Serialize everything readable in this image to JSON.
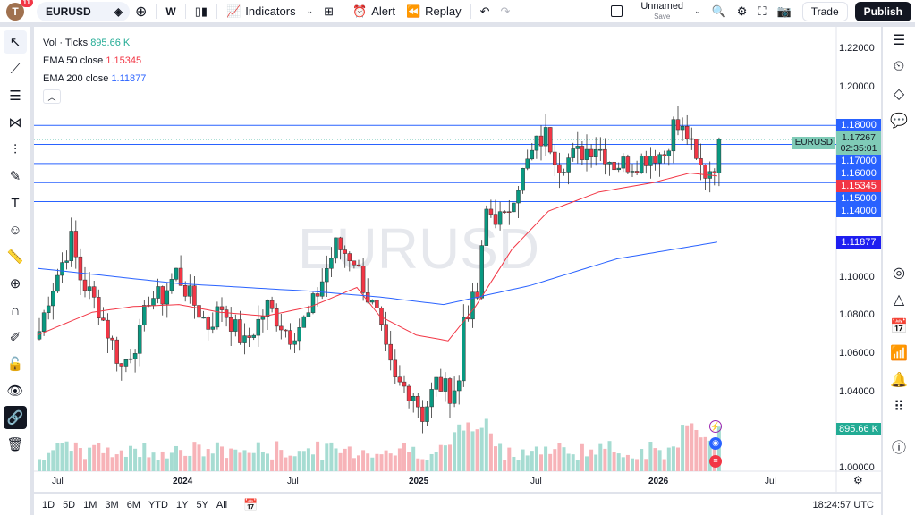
{
  "topbar": {
    "avatar_letter": "T",
    "notifications": "11",
    "symbol": "EURUSD",
    "interval": "W",
    "indicators": "Indicators",
    "alert": "Alert",
    "replay": "Replay",
    "layout_name": "Unnamed",
    "layout_status": "Save",
    "trade": "Trade",
    "publish": "Publish"
  },
  "legend": {
    "vol_label": "Vol · Ticks",
    "vol_value": "895.66 K",
    "ema50_label": "EMA 50 close",
    "ema50_value": "1.15345",
    "ema200_label": "EMA 200 close",
    "ema200_value": "1.11877"
  },
  "watermark": "EURUSD",
  "price_axis": [
    "1.22000",
    "1.20000",
    "1.10000",
    "1.08000",
    "1.06000",
    "1.04000",
    "1.00000"
  ],
  "price_labels": [
    {
      "text": "1.18000",
      "price": 1.18,
      "color": "#2962ff"
    },
    {
      "text": "1.17000",
      "price": 1.17,
      "color": "#2962ff"
    },
    {
      "text": "1.16000",
      "price": 1.16,
      "color": "#2962ff"
    },
    {
      "text": "1.15345",
      "price": 1.15345,
      "color": "#f23645"
    },
    {
      "text": "1.15000",
      "price": 1.15,
      "color": "#2962ff"
    },
    {
      "text": "1.14000",
      "price": 1.14,
      "color": "#2962ff"
    },
    {
      "text": "1.11877",
      "price": 1.11877,
      "color": "#1e1ef0"
    }
  ],
  "current": {
    "symbol": "EURUSD",
    "price": "1.17267",
    "countdown": "02:35:01",
    "value": 1.17267
  },
  "volume_label": "895.66 K",
  "horizontal_lines": [
    1.18,
    1.17,
    1.16,
    1.15,
    1.14
  ],
  "time_axis": [
    "Jul",
    "2024",
    "Jul",
    "2025",
    "Jul",
    "2026",
    "Jul"
  ],
  "ranges": [
    "1D",
    "5D",
    "1M",
    "3M",
    "6M",
    "YTD",
    "1Y",
    "5Y",
    "All"
  ],
  "clock": "18:24:57 UTC",
  "colors": {
    "up": "#089981",
    "down": "#f23645",
    "ema50": "#f23645",
    "ema200": "#2962ff",
    "hline": "#2962ff"
  },
  "chart_data": {
    "type": "candlestick",
    "close_path": [
      [
        0,
        1.072
      ],
      [
        2,
        1.09
      ],
      [
        7,
        1.12
      ],
      [
        9,
        1.1
      ],
      [
        13,
        1.084
      ],
      [
        18,
        1.053
      ],
      [
        22,
        1.07
      ],
      [
        24,
        1.09
      ],
      [
        27,
        1.09
      ],
      [
        30,
        1.103
      ],
      [
        33,
        1.09
      ],
      [
        37,
        1.075
      ],
      [
        40,
        1.085
      ],
      [
        45,
        1.065
      ],
      [
        50,
        1.085
      ],
      [
        55,
        1.07
      ],
      [
        59,
        1.08
      ],
      [
        63,
        1.105
      ],
      [
        65,
        1.117
      ],
      [
        69,
        1.11
      ],
      [
        72,
        1.09
      ],
      [
        74,
        1.08
      ],
      [
        76,
        1.06
      ],
      [
        78,
        1.045
      ],
      [
        82,
        1.04
      ],
      [
        84,
        1.028
      ],
      [
        87,
        1.045
      ],
      [
        90,
        1.04
      ],
      [
        92,
        1.045
      ],
      [
        93,
        1.08
      ],
      [
        96,
        1.09
      ],
      [
        98,
        1.135
      ],
      [
        102,
        1.13
      ],
      [
        104,
        1.145
      ],
      [
        107,
        1.16
      ],
      [
        109,
        1.17
      ],
      [
        111,
        1.175
      ],
      [
        114,
        1.16
      ],
      [
        118,
        1.165
      ],
      [
        122,
        1.17
      ],
      [
        126,
        1.16
      ],
      [
        130,
        1.16
      ],
      [
        134,
        1.165
      ],
      [
        137,
        1.165
      ],
      [
        139,
        1.18
      ],
      [
        142,
        1.175
      ],
      [
        144,
        1.16
      ],
      [
        146,
        1.155
      ],
      [
        148,
        1.16
      ],
      [
        149,
        1.17267
      ]
    ],
    "ema50_path": [
      [
        0,
        1.07
      ],
      [
        12,
        1.082
      ],
      [
        21,
        1.085
      ],
      [
        31,
        1.086
      ],
      [
        40,
        1.082
      ],
      [
        50,
        1.08
      ],
      [
        60,
        1.085
      ],
      [
        70,
        1.095
      ],
      [
        75,
        1.08
      ],
      [
        83,
        1.07
      ],
      [
        90,
        1.067
      ],
      [
        96,
        1.085
      ],
      [
        104,
        1.115
      ],
      [
        112,
        1.135
      ],
      [
        123,
        1.145
      ],
      [
        135,
        1.15
      ],
      [
        143,
        1.155
      ],
      [
        149,
        1.15345
      ]
    ],
    "ema200_path": [
      [
        0,
        1.105
      ],
      [
        31,
        1.097
      ],
      [
        60,
        1.093
      ],
      [
        75,
        1.09
      ],
      [
        89,
        1.086
      ],
      [
        108,
        1.096
      ],
      [
        127,
        1.11
      ],
      [
        149,
        1.11877
      ]
    ],
    "ylim": [
      1.0,
      1.22
    ]
  }
}
